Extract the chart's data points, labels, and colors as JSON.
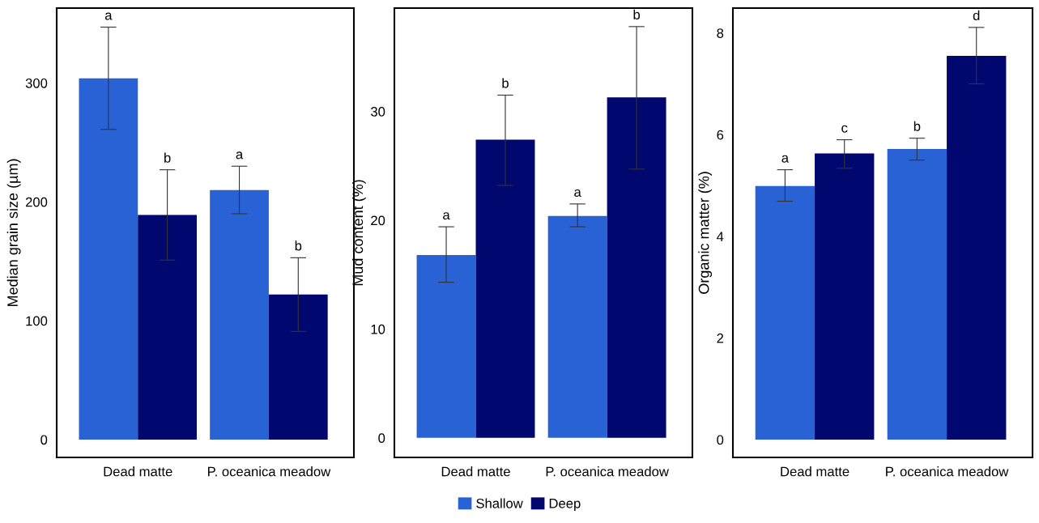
{
  "chart_data": [
    {
      "type": "bar",
      "ylabel": "Median grain size (µm)",
      "categories": [
        "Dead matte",
        "P. oceanica meadow"
      ],
      "ylim": [
        -15,
        363
      ],
      "yticks": [
        0,
        100,
        200,
        300
      ],
      "legend": "bottom",
      "series": [
        {
          "name": "Shallow",
          "color": "#2962d4",
          "values": [
            304,
            210
          ],
          "errors": [
            [
              261,
              347
            ],
            [
              190,
              230
            ]
          ]
        },
        {
          "name": "Deep",
          "color": "#00076e",
          "values": [
            189,
            122
          ],
          "errors": [
            [
              151,
              227
            ],
            [
              91,
              153
            ]
          ]
        }
      ],
      "annotations": [
        "a",
        "a",
        "b",
        "b"
      ]
    },
    {
      "type": "bar",
      "ylabel": "Mud content (%)",
      "categories": [
        "Dead matte",
        "P. oceanica meadow"
      ],
      "ylim": [
        -1.8,
        39.5
      ],
      "yticks": [
        0,
        10,
        20,
        30
      ],
      "series": [
        {
          "color": "#2962d4",
          "values": [
            16.8,
            20.4
          ],
          "errors": [
            [
              14.3,
              19.4
            ],
            [
              19.4,
              21.5
            ]
          ]
        },
        {
          "color": "#00076e",
          "values": [
            27.4,
            31.3
          ],
          "errors": [
            [
              23.2,
              31.5
            ],
            [
              24.7,
              37.8
            ]
          ]
        }
      ],
      "annotations": [
        "a",
        "a",
        "b",
        "b"
      ]
    },
    {
      "type": "bar",
      "ylabel": "Organic matter (%)",
      "categories": [
        "Dead matte",
        "P. oceanica meadow"
      ],
      "ylim": [
        -0.35,
        8.49
      ],
      "yticks": [
        0,
        2,
        4,
        6,
        8
      ],
      "series": [
        {
          "color": "#2962d4",
          "values": [
            4.99,
            5.72
          ],
          "errors": [
            [
              4.69,
              5.31
            ],
            [
              5.5,
              5.93
            ]
          ]
        },
        {
          "color": "#00076e",
          "values": [
            5.63,
            7.55
          ],
          "errors": [
            [
              5.34,
              5.9
            ],
            [
              7.0,
              8.11
            ]
          ]
        }
      ],
      "annotations": [
        "a",
        "b",
        "c",
        "d"
      ]
    }
  ]
}
